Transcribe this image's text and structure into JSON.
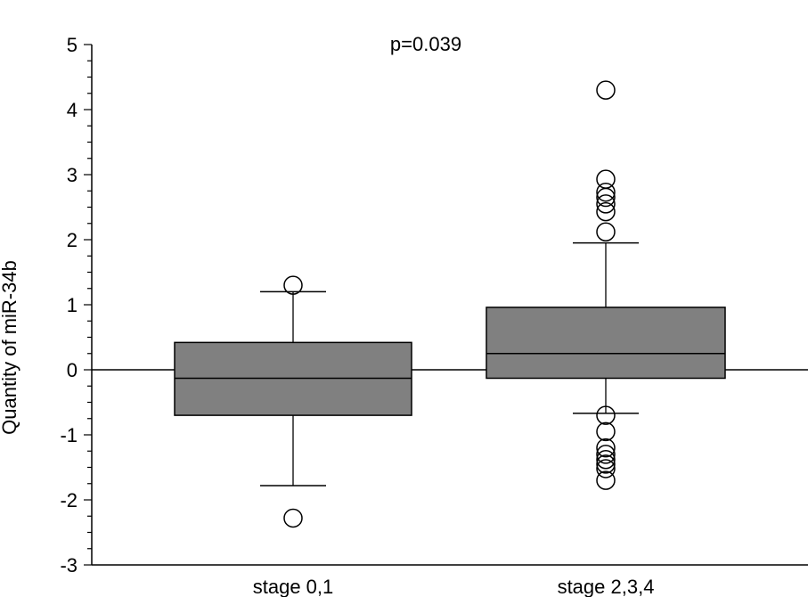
{
  "chart_data": {
    "type": "box",
    "ylabel": "Quantity of miR-34b",
    "xlabel": "",
    "ylim": [
      -3,
      5
    ],
    "yticks": [
      "5",
      "4",
      "3",
      "2",
      "1",
      "0",
      "-1",
      "-2",
      "-3"
    ],
    "ytick_values": [
      5,
      4,
      3,
      2,
      1,
      0,
      -1,
      -2,
      -3
    ],
    "minor_tick_step": 0.25,
    "annotation": "p=0.039",
    "reference_line": 0,
    "categories": [
      "stage 0,1",
      "stage 2,3,4"
    ],
    "boxes": [
      {
        "category": "stage 0,1",
        "q1": -0.7,
        "median": -0.13,
        "q3": 0.42,
        "whisker_low": -1.78,
        "whisker_high": 1.2,
        "outliers": [
          1.3,
          -2.28
        ]
      },
      {
        "category": "stage 2,3,4",
        "q1": -0.13,
        "median": 0.25,
        "q3": 0.96,
        "whisker_low": -0.67,
        "whisker_high": 1.95,
        "outliers": [
          4.3,
          2.93,
          2.73,
          2.65,
          2.55,
          2.43,
          2.12,
          -0.7,
          -0.95,
          -1.2,
          -1.3,
          -1.38,
          -1.45,
          -1.52,
          -1.7
        ]
      }
    ],
    "colors": {
      "box_fill": "#808080",
      "line": "#000000",
      "background": "#ffffff"
    }
  }
}
